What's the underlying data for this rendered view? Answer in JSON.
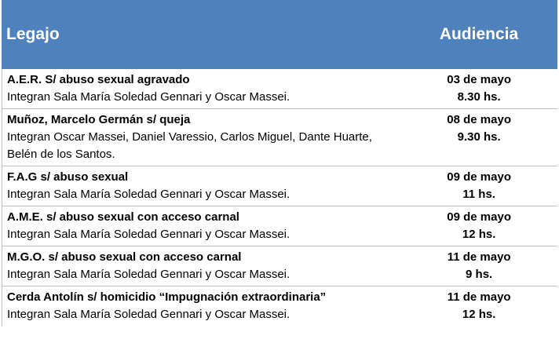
{
  "header": {
    "legajo_label": "Legajo",
    "audiencia_label": "Audiencia",
    "background_color": "#4f81bd"
  },
  "rows": [
    {
      "title": "A.E.R. S/ abuso sexual agravado",
      "detail": "Integran Sala María Soledad Gennari y  Oscar Massei.",
      "date": "03 de mayo",
      "time": "8.30 hs."
    },
    {
      "title": "Muñoz, Marcelo Germán s/ queja",
      "detail": "Integran Oscar Massei, Daniel Varessio, Carlos Miguel, Dante Huarte, Belén de los Santos.",
      "date": "08 de mayo",
      "time": "9.30 hs."
    },
    {
      "title": "F.A.G s/ abuso sexual",
      "detail": "Integran Sala María Soledad Gennari y  Oscar Massei.",
      "date": "09 de mayo",
      "time": "11 hs."
    },
    {
      "title": "A.M.E. s/ abuso sexual con acceso carnal",
      "detail": "Integran Sala María Soledad Gennari y  Oscar Massei.",
      "date": "09 de mayo",
      "time": "12 hs."
    },
    {
      "title": "M.G.O. s/ abuso sexual con acceso carnal",
      "detail": "Integran Sala María Soledad Gennari y  Oscar Massei.",
      "date": "11 de mayo",
      "time": "9 hs."
    },
    {
      "title": "Cerda Antolín s/ homicidio “Impugnación extraordinaria”",
      "detail": "Integran Sala María Soledad Gennari y  Oscar Massei.",
      "date": "11 de mayo",
      "time": "12 hs."
    }
  ]
}
